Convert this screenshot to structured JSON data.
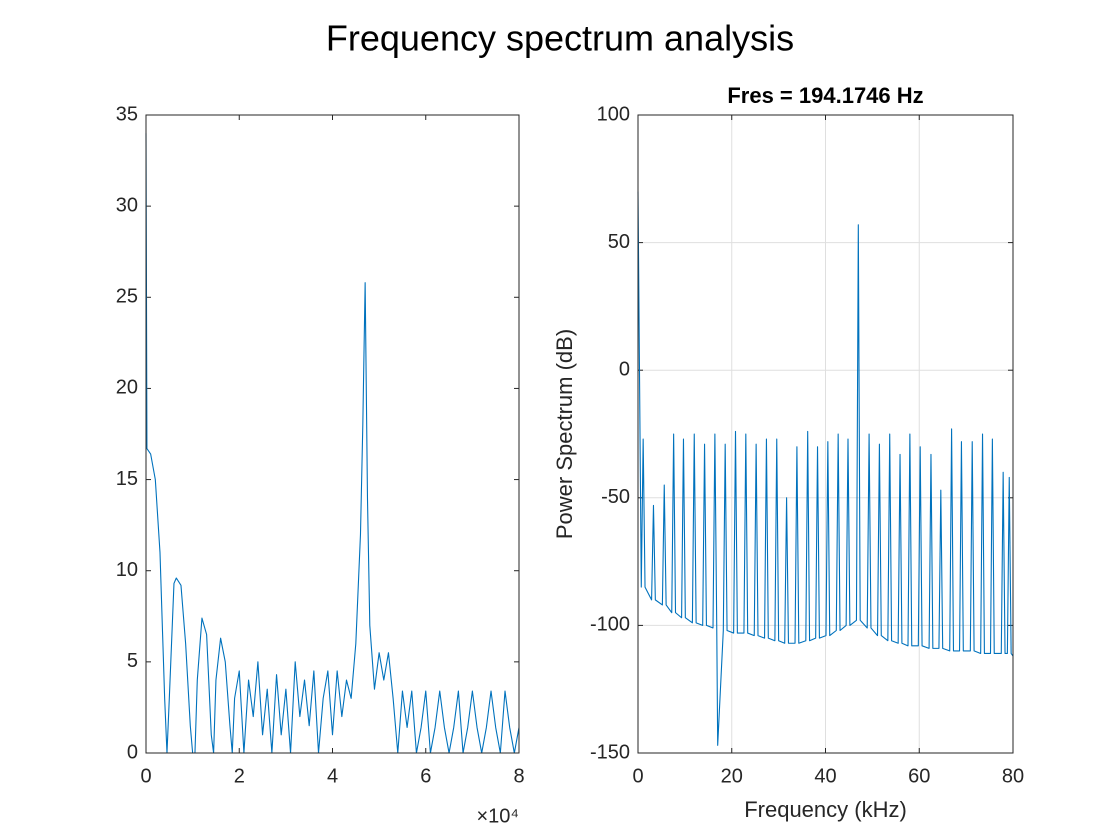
{
  "title": "Frequency spectrum analysis",
  "chart_data": [
    {
      "type": "line",
      "x_multiplier": "×10⁴",
      "xlim": [
        0,
        8
      ],
      "xticks": [
        0,
        2,
        4,
        6,
        8
      ],
      "ylim": [
        0,
        35
      ],
      "yticks": [
        0,
        5,
        10,
        15,
        20,
        25,
        30,
        35
      ],
      "grid": false,
      "series": [
        {
          "color": "#0072bd",
          "x": [
            0,
            0.02,
            0.1,
            0.2,
            0.3,
            0.4,
            0.45,
            0.5,
            0.6,
            0.65,
            0.75,
            0.85,
            0.95,
            1.0,
            1.05,
            1.1,
            1.2,
            1.3,
            1.4,
            1.45,
            1.5,
            1.6,
            1.7,
            1.8,
            1.85,
            1.9,
            2.0,
            2.1,
            2.2,
            2.3,
            2.4,
            2.5,
            2.6,
            2.7,
            2.8,
            2.9,
            3.0,
            3.1,
            3.2,
            3.3,
            3.4,
            3.5,
            3.6,
            3.7,
            3.8,
            3.9,
            4.0,
            4.1,
            4.2,
            4.3,
            4.4,
            4.5,
            4.6,
            4.65,
            4.7,
            4.75,
            4.8,
            4.9,
            5.0,
            5.1,
            5.2,
            5.3,
            5.4,
            5.5,
            5.6,
            5.7,
            5.8,
            5.9,
            6.0,
            6.1,
            6.2,
            6.3,
            6.4,
            6.5,
            6.6,
            6.7,
            6.8,
            6.9,
            7.0,
            7.1,
            7.2,
            7.3,
            7.4,
            7.5,
            7.6,
            7.7,
            7.8,
            7.9,
            8.0
          ],
          "values": [
            34,
            16.7,
            16.4,
            15,
            11,
            3,
            0,
            3,
            9.3,
            9.6,
            9.2,
            6,
            1.5,
            0,
            0,
            4,
            7.4,
            6.5,
            1,
            0,
            4,
            6.3,
            5,
            1.5,
            0,
            3,
            4.5,
            0,
            4,
            2,
            5,
            1,
            3.5,
            0,
            4.3,
            1,
            3.5,
            0,
            5,
            2,
            4,
            1.5,
            4.5,
            0,
            3,
            4.5,
            1,
            4.5,
            2,
            4,
            3,
            6,
            12,
            18,
            25.8,
            14,
            7,
            3.5,
            5.5,
            4,
            5.5,
            3,
            0,
            3.4,
            1.4,
            3.4,
            0,
            1.4,
            3.4,
            0,
            1.4,
            3.4,
            1.4,
            0,
            1.4,
            3.4,
            0,
            1.4,
            3.4,
            1.4,
            0,
            1.4,
            3.4,
            1.4,
            0,
            3.4,
            1.4,
            0,
            1.4
          ]
        }
      ]
    },
    {
      "type": "line",
      "title": "Fres = 194.1746 Hz",
      "xlabel": "Frequency (kHz)",
      "ylabel": "Power Spectrum (dB)",
      "xlim": [
        0,
        80
      ],
      "xticks": [
        0,
        20,
        40,
        60,
        80
      ],
      "ylim": [
        -150,
        100
      ],
      "yticks": [
        -150,
        -100,
        -50,
        0,
        50,
        100
      ],
      "grid": true,
      "series": [
        {
          "color": "#0072bd",
          "x": [
            0,
            0.7,
            1.1,
            1.5,
            2.9,
            3.3,
            3.7,
            5.2,
            5.6,
            6.0,
            7.2,
            7.6,
            8.0,
            9.3,
            9.7,
            10.1,
            11.6,
            12.0,
            12.4,
            13.8,
            14.2,
            14.6,
            16.0,
            16.4,
            16.8,
            17.0,
            18.2,
            18.6,
            19.0,
            20.4,
            20.8,
            21.2,
            22.6,
            23.0,
            23.4,
            24.8,
            25.2,
            25.6,
            27.0,
            27.4,
            27.8,
            29.2,
            29.6,
            30.0,
            31.3,
            31.7,
            32.1,
            33.5,
            33.9,
            34.3,
            35.8,
            36.2,
            36.6,
            37.9,
            38.3,
            38.7,
            40.1,
            40.5,
            40.9,
            42.3,
            42.7,
            43.1,
            44.4,
            44.8,
            45.2,
            46.6,
            47.0,
            47.4,
            48.9,
            49.3,
            49.7,
            51.1,
            51.5,
            51.9,
            53.3,
            53.7,
            54.1,
            55.5,
            55.9,
            56.3,
            57.6,
            58.0,
            58.4,
            59.8,
            60.2,
            60.6,
            62.1,
            62.5,
            62.9,
            64.2,
            64.6,
            65.0,
            66.5,
            66.9,
            67.3,
            68.6,
            69.0,
            69.4,
            70.9,
            71.3,
            71.7,
            73.1,
            73.5,
            73.9,
            75.2,
            75.6,
            76.0,
            77.5,
            77.9,
            78.3,
            78.8,
            79.2,
            79.6,
            80
          ],
          "values": [
            70,
            -85,
            -27,
            -85,
            -90,
            -53,
            -90,
            -92,
            -45,
            -92,
            -95,
            -25,
            -95,
            -97,
            -27,
            -97,
            -99,
            -25,
            -99,
            -100,
            -29,
            -100,
            -101,
            -25,
            -101,
            -147,
            -102,
            -29,
            -102,
            -103,
            -24,
            -103,
            -103,
            -25,
            -103,
            -104,
            -29,
            -104,
            -105,
            -27,
            -105,
            -106,
            -27,
            -106,
            -107,
            -50,
            -107,
            -107,
            -30,
            -107,
            -106,
            -24,
            -106,
            -105,
            -30,
            -105,
            -104,
            -28,
            -104,
            -102,
            -25,
            -102,
            -100,
            -27,
            -100,
            -98,
            57,
            -98,
            -101,
            -25,
            -101,
            -104,
            -29,
            -104,
            -106,
            -25,
            -106,
            -107,
            -33,
            -107,
            -108,
            -25,
            -108,
            -108,
            -30,
            -108,
            -109,
            -33,
            -109,
            -109,
            -47,
            -109,
            -110,
            -23,
            -110,
            -110,
            -28,
            -110,
            -110,
            -28,
            -110,
            -111,
            -25,
            -111,
            -111,
            -27,
            -111,
            -111,
            -40,
            -111,
            -111,
            -42,
            -111,
            -112
          ]
        }
      ]
    }
  ]
}
